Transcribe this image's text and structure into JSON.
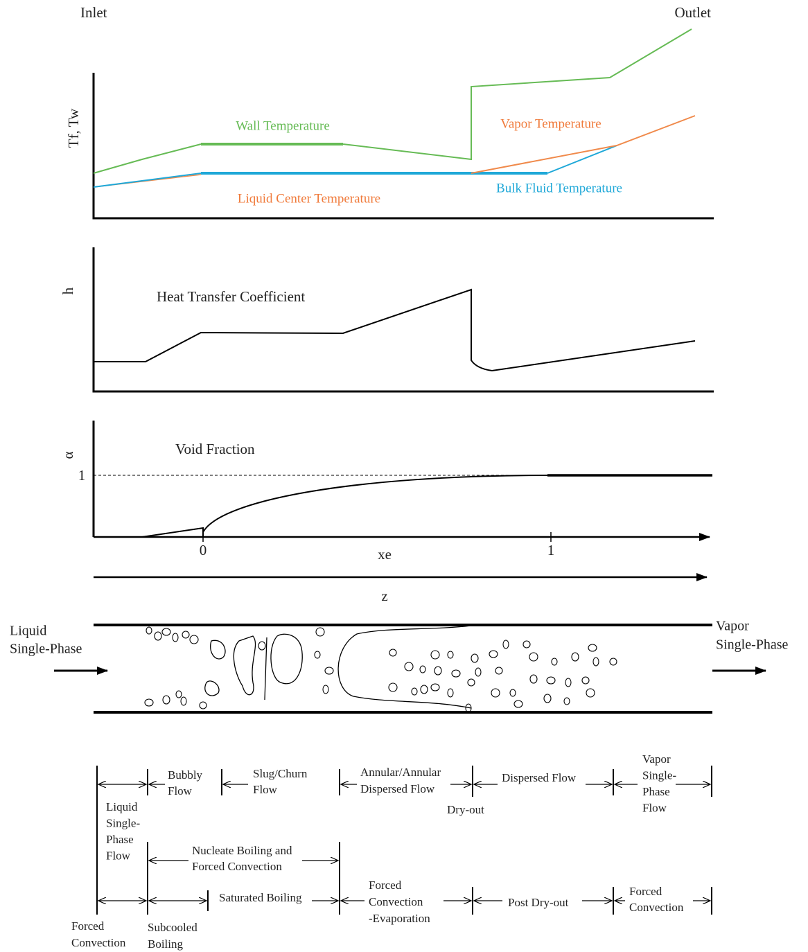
{
  "header": {
    "inlet": "Inlet",
    "outlet": "Outlet"
  },
  "temperature_panel": {
    "y_label": "Tf, Tw",
    "labels": {
      "wall": "Wall Temperature",
      "vapor": "Vapor Temperature",
      "liquid_center": "Liquid Center Temperature",
      "bulk_fluid": "Bulk Fluid Temperature"
    }
  },
  "htc_panel": {
    "y_label": "h",
    "title": "Heat Transfer Coefficient"
  },
  "void_panel": {
    "y_label": "α",
    "title": "Void Fraction",
    "y_tick": "1",
    "x_ticks": [
      "0",
      "1"
    ],
    "x_label": "xe"
  },
  "z_axis": {
    "label": "z"
  },
  "tube": {
    "inlet": [
      "Liquid",
      "Single-Phase"
    ],
    "outlet": [
      "Vapor",
      "Single-Phase"
    ]
  },
  "flow_regimes": [
    {
      "lines": [
        "Bubbly",
        "Flow"
      ]
    },
    {
      "lines": [
        "Slug/Churn",
        "Flow"
      ]
    },
    {
      "lines": [
        "Annular/Annular",
        "Dispersed Flow"
      ]
    },
    {
      "lines": [
        "Dispersed Flow"
      ]
    },
    {
      "lines": [
        "Vapor",
        "Single-",
        "Phase",
        "Flow"
      ]
    },
    {
      "lines": [
        "Dry-out"
      ]
    },
    {
      "lines": [
        "Liquid",
        "Single-",
        "Phase",
        "Flow"
      ]
    }
  ],
  "heat_transfer_regimes": [
    {
      "lines": [
        "Nucleate Boiling and",
        "Forced Convection"
      ]
    },
    {
      "lines": [
        "Saturated Boiling"
      ]
    },
    {
      "lines": [
        "Forced",
        "Convection",
        "-Evaporation"
      ]
    },
    {
      "lines": [
        "Post Dry-out"
      ]
    },
    {
      "lines": [
        "Forced",
        "Convection"
      ]
    },
    {
      "lines": [
        "Forced",
        "Convection"
      ]
    },
    {
      "lines": [
        "Subcooled",
        "Boiling"
      ]
    }
  ]
}
